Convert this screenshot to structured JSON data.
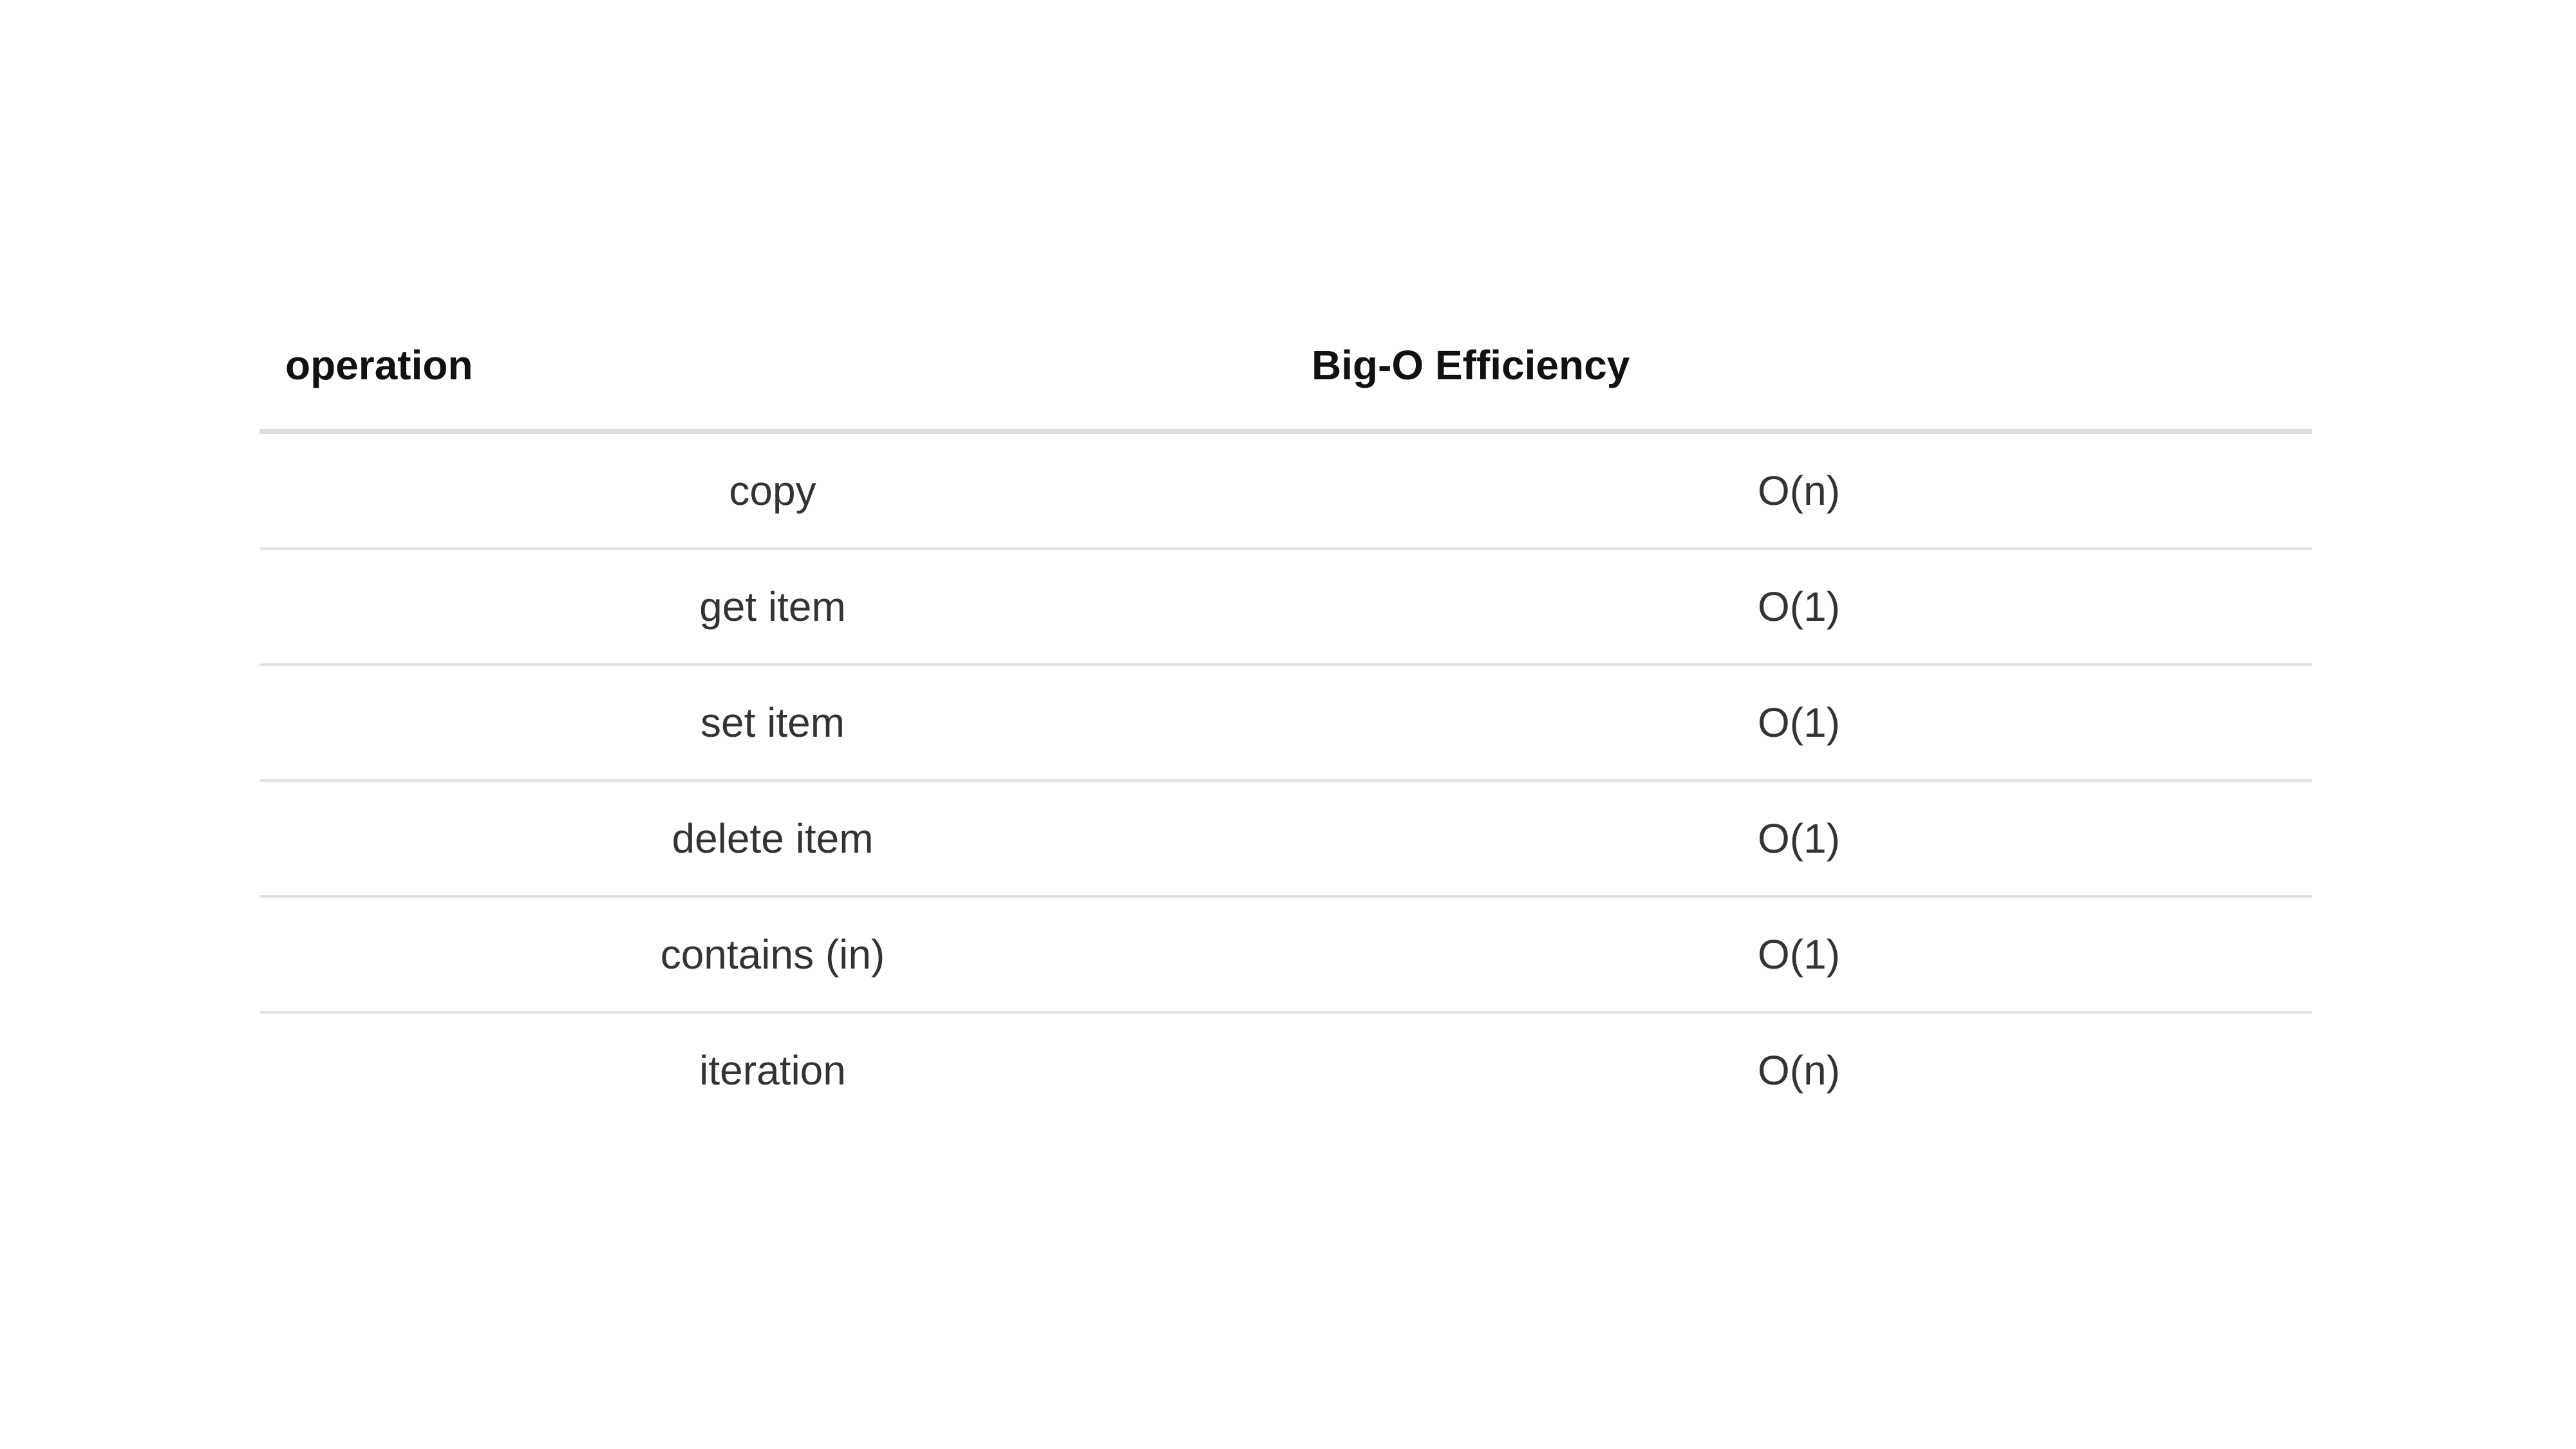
{
  "table": {
    "headers": [
      "operation",
      "Big-O Efficiency"
    ],
    "rows": [
      {
        "operation": "copy",
        "efficiency": "O(n)"
      },
      {
        "operation": "get item",
        "efficiency": "O(1)"
      },
      {
        "operation": "set item",
        "efficiency": "O(1)"
      },
      {
        "operation": "delete item",
        "efficiency": "O(1)"
      },
      {
        "operation": "contains (in)",
        "efficiency": "O(1)"
      },
      {
        "operation": "iteration",
        "efficiency": "O(n)"
      }
    ]
  }
}
